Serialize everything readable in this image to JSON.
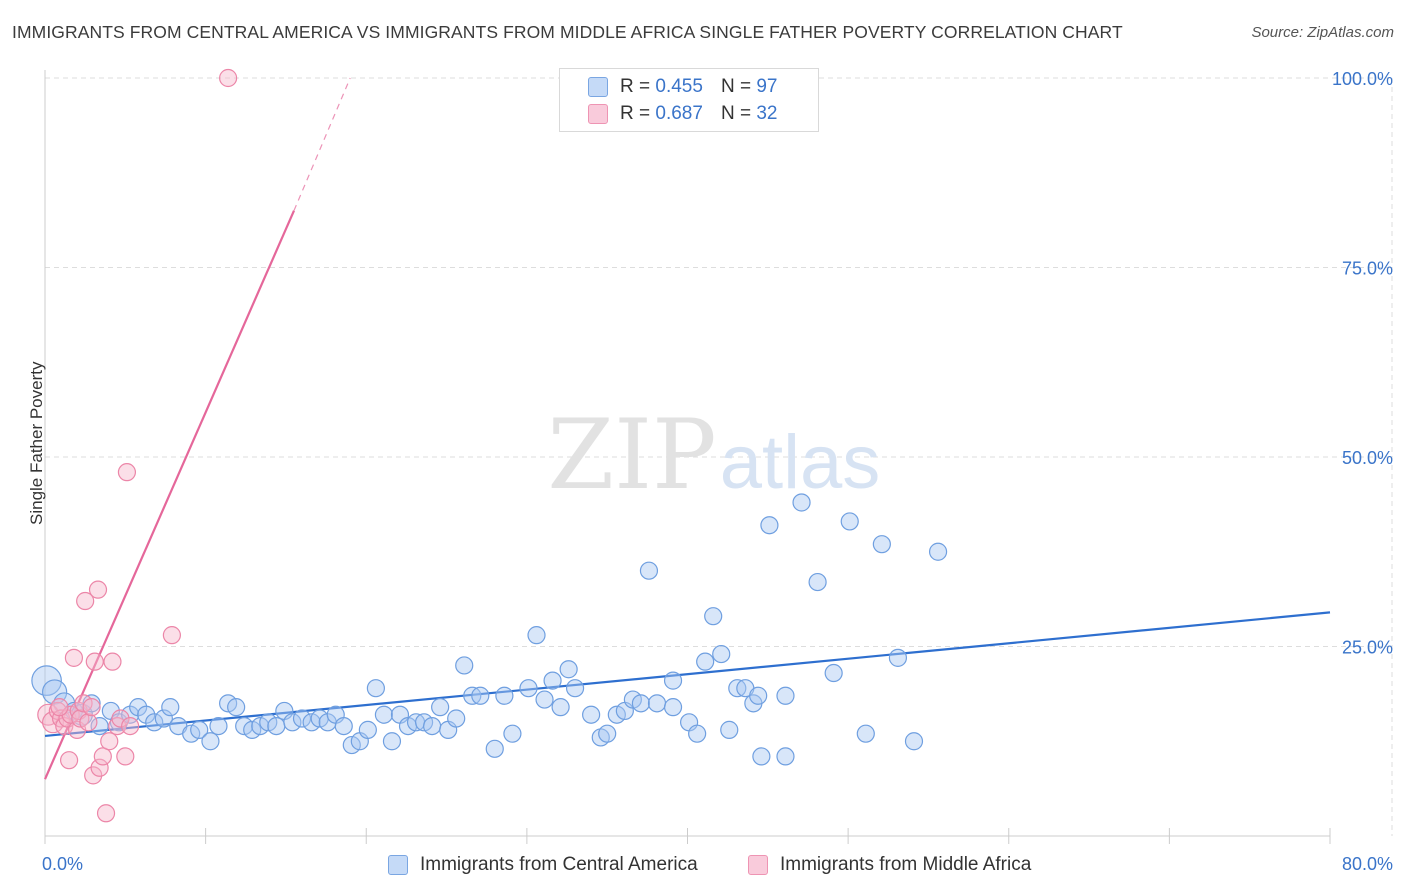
{
  "title": "IMMIGRANTS FROM CENTRAL AMERICA VS IMMIGRANTS FROM MIDDLE AFRICA SINGLE FATHER POVERTY CORRELATION CHART",
  "source": "Source: ZipAtlas.com",
  "watermark": {
    "zip": "ZIP",
    "atlas": "atlas"
  },
  "colors": {
    "blue_fill": "#a9c8f2",
    "blue_stroke": "#6f9fe0",
    "blue_line": "#2e6fcf",
    "pink_fill": "#f7b8cc",
    "pink_stroke": "#ec86a8",
    "pink_line": "#e5679a",
    "axis_text": "#3a74c9",
    "grid": "#dddddd"
  },
  "legend": {
    "r_label": "R =",
    "n_label": "N =",
    "central_america": {
      "r": "0.455",
      "n": "97"
    },
    "middle_africa": {
      "r": "0.687",
      "n": "32"
    }
  },
  "bottom_legend": {
    "central_america": "Immigrants from Central America",
    "middle_africa": "Immigrants from Middle Africa"
  },
  "chart_data": {
    "type": "scatter",
    "title": "IMMIGRANTS FROM CENTRAL AMERICA VS IMMIGRANTS FROM MIDDLE AFRICA SINGLE FATHER POVERTY CORRELATION CHART",
    "xlabel": "",
    "ylabel": "Single Father Poverty",
    "xlim": [
      0,
      80
    ],
    "ylim": [
      0,
      105
    ],
    "x_tick_labels": [
      "0.0%",
      "80.0%"
    ],
    "y_ticks": [
      25,
      50,
      75,
      100
    ],
    "y_tick_labels": [
      "25.0%",
      "50.0%",
      "75.0%",
      "100.0%"
    ],
    "grid": true,
    "series": [
      {
        "name": "Immigrants from Central America",
        "color": "#a9c8f2",
        "trendline": {
          "x": [
            0,
            80
          ],
          "y": [
            13.2,
            29.5
          ]
        },
        "points": [
          {
            "x": 0.1,
            "y": 20.5,
            "s": 3
          },
          {
            "x": 0.6,
            "y": 19,
            "s": 2
          },
          {
            "x": 1.2,
            "y": 17.5,
            "s": 1.5
          },
          {
            "x": 1.8,
            "y": 16.5,
            "s": 1
          },
          {
            "x": 2.3,
            "y": 16,
            "s": 1.5
          },
          {
            "x": 2.9,
            "y": 17.5,
            "s": 1
          },
          {
            "x": 3.4,
            "y": 14.5,
            "s": 1
          },
          {
            "x": 4.1,
            "y": 16.5,
            "s": 1
          },
          {
            "x": 4.6,
            "y": 15,
            "s": 1
          },
          {
            "x": 5.3,
            "y": 16,
            "s": 1
          },
          {
            "x": 5.8,
            "y": 17,
            "s": 1
          },
          {
            "x": 6.3,
            "y": 16,
            "s": 1
          },
          {
            "x": 6.8,
            "y": 15,
            "s": 1
          },
          {
            "x": 7.4,
            "y": 15.5,
            "s": 1
          },
          {
            "x": 7.8,
            "y": 17,
            "s": 1
          },
          {
            "x": 8.3,
            "y": 14.5,
            "s": 1
          },
          {
            "x": 9.1,
            "y": 13.5,
            "s": 1
          },
          {
            "x": 9.6,
            "y": 14,
            "s": 1
          },
          {
            "x": 10.3,
            "y": 12.5,
            "s": 1
          },
          {
            "x": 10.8,
            "y": 14.5,
            "s": 1
          },
          {
            "x": 11.4,
            "y": 17.5,
            "s": 1
          },
          {
            "x": 11.9,
            "y": 17,
            "s": 1
          },
          {
            "x": 12.4,
            "y": 14.5,
            "s": 1
          },
          {
            "x": 12.9,
            "y": 14,
            "s": 1
          },
          {
            "x": 13.4,
            "y": 14.5,
            "s": 1
          },
          {
            "x": 13.9,
            "y": 15,
            "s": 1
          },
          {
            "x": 14.4,
            "y": 14.5,
            "s": 1
          },
          {
            "x": 14.9,
            "y": 16.5,
            "s": 1
          },
          {
            "x": 15.4,
            "y": 15,
            "s": 1
          },
          {
            "x": 16.0,
            "y": 15.5,
            "s": 1
          },
          {
            "x": 16.6,
            "y": 15,
            "s": 1
          },
          {
            "x": 17.1,
            "y": 15.5,
            "s": 1
          },
          {
            "x": 17.6,
            "y": 15,
            "s": 1
          },
          {
            "x": 18.1,
            "y": 16,
            "s": 1
          },
          {
            "x": 18.6,
            "y": 14.5,
            "s": 1
          },
          {
            "x": 19.1,
            "y": 12,
            "s": 1
          },
          {
            "x": 19.6,
            "y": 12.5,
            "s": 1
          },
          {
            "x": 20.1,
            "y": 14,
            "s": 1
          },
          {
            "x": 20.6,
            "y": 19.5,
            "s": 1
          },
          {
            "x": 21.1,
            "y": 16,
            "s": 1
          },
          {
            "x": 21.6,
            "y": 12.5,
            "s": 1
          },
          {
            "x": 22.1,
            "y": 16,
            "s": 1
          },
          {
            "x": 22.6,
            "y": 14.5,
            "s": 1
          },
          {
            "x": 23.1,
            "y": 15,
            "s": 1
          },
          {
            "x": 23.6,
            "y": 15,
            "s": 1
          },
          {
            "x": 24.1,
            "y": 14.5,
            "s": 1
          },
          {
            "x": 24.6,
            "y": 17,
            "s": 1
          },
          {
            "x": 25.1,
            "y": 14,
            "s": 1
          },
          {
            "x": 25.6,
            "y": 15.5,
            "s": 1
          },
          {
            "x": 26.1,
            "y": 22.5,
            "s": 1
          },
          {
            "x": 26.6,
            "y": 18.5,
            "s": 1
          },
          {
            "x": 27.1,
            "y": 18.5,
            "s": 1
          },
          {
            "x": 28.0,
            "y": 11.5,
            "s": 1
          },
          {
            "x": 28.6,
            "y": 18.5,
            "s": 1
          },
          {
            "x": 29.1,
            "y": 13.5,
            "s": 1
          },
          {
            "x": 30.1,
            "y": 19.5,
            "s": 1
          },
          {
            "x": 30.6,
            "y": 26.5,
            "s": 1
          },
          {
            "x": 31.1,
            "y": 18,
            "s": 1
          },
          {
            "x": 31.6,
            "y": 20.5,
            "s": 1
          },
          {
            "x": 32.1,
            "y": 17,
            "s": 1
          },
          {
            "x": 32.6,
            "y": 22,
            "s": 1
          },
          {
            "x": 33.0,
            "y": 19.5,
            "s": 1
          },
          {
            "x": 34.0,
            "y": 16,
            "s": 1
          },
          {
            "x": 34.6,
            "y": 13,
            "s": 1
          },
          {
            "x": 35.0,
            "y": 13.5,
            "s": 1
          },
          {
            "x": 35.6,
            "y": 16,
            "s": 1
          },
          {
            "x": 36.1,
            "y": 16.5,
            "s": 1
          },
          {
            "x": 36.6,
            "y": 18,
            "s": 1
          },
          {
            "x": 37.1,
            "y": 17.5,
            "s": 1
          },
          {
            "x": 37.6,
            "y": 35,
            "s": 1
          },
          {
            "x": 38.1,
            "y": 17.5,
            "s": 1
          },
          {
            "x": 39.1,
            "y": 20.5,
            "s": 1
          },
          {
            "x": 39.1,
            "y": 17,
            "s": 1
          },
          {
            "x": 40.1,
            "y": 15,
            "s": 1
          },
          {
            "x": 40.6,
            "y": 13.5,
            "s": 1
          },
          {
            "x": 41.1,
            "y": 23,
            "s": 1
          },
          {
            "x": 41.6,
            "y": 29,
            "s": 1
          },
          {
            "x": 42.1,
            "y": 24,
            "s": 1
          },
          {
            "x": 42.6,
            "y": 14,
            "s": 1
          },
          {
            "x": 43.1,
            "y": 19.5,
            "s": 1
          },
          {
            "x": 43.6,
            "y": 19.5,
            "s": 1
          },
          {
            "x": 44.1,
            "y": 17.5,
            "s": 1
          },
          {
            "x": 44.4,
            "y": 18.5,
            "s": 1
          },
          {
            "x": 44.6,
            "y": 10.5,
            "s": 1
          },
          {
            "x": 45.1,
            "y": 41,
            "s": 1
          },
          {
            "x": 46.1,
            "y": 10.5,
            "s": 1
          },
          {
            "x": 46.1,
            "y": 18.5,
            "s": 1
          },
          {
            "x": 47.1,
            "y": 44,
            "s": 1
          },
          {
            "x": 48.1,
            "y": 33.5,
            "s": 1
          },
          {
            "x": 49.1,
            "y": 21.5,
            "s": 1
          },
          {
            "x": 50.1,
            "y": 41.5,
            "s": 1
          },
          {
            "x": 51.1,
            "y": 13.5,
            "s": 1
          },
          {
            "x": 52.1,
            "y": 38.5,
            "s": 1
          },
          {
            "x": 53.1,
            "y": 23.5,
            "s": 1
          },
          {
            "x": 54.1,
            "y": 12.5,
            "s": 1
          },
          {
            "x": 55.6,
            "y": 37.5,
            "s": 1
          }
        ]
      },
      {
        "name": "Immigrants from Middle Africa",
        "color": "#f7b8cc",
        "trendline": {
          "x": [
            0,
            15.5
          ],
          "y": [
            7.5,
            82.5
          ]
        },
        "trendline_dashed": {
          "x": [
            15.5,
            19
          ],
          "y": [
            82.5,
            100
          ]
        },
        "points": [
          {
            "x": 0.2,
            "y": 16,
            "s": 1.5
          },
          {
            "x": 0.5,
            "y": 15,
            "s": 1.5
          },
          {
            "x": 0.8,
            "y": 16.5,
            "s": 1
          },
          {
            "x": 1.0,
            "y": 15.5,
            "s": 1
          },
          {
            "x": 1.2,
            "y": 14.5,
            "s": 1
          },
          {
            "x": 1.4,
            "y": 15.5,
            "s": 1
          },
          {
            "x": 1.5,
            "y": 10,
            "s": 1
          },
          {
            "x": 1.6,
            "y": 16,
            "s": 1
          },
          {
            "x": 1.8,
            "y": 23.5,
            "s": 1
          },
          {
            "x": 2.0,
            "y": 14,
            "s": 1
          },
          {
            "x": 2.1,
            "y": 16.5,
            "s": 1
          },
          {
            "x": 2.2,
            "y": 15.5,
            "s": 1
          },
          {
            "x": 2.4,
            "y": 17.5,
            "s": 1
          },
          {
            "x": 2.5,
            "y": 31,
            "s": 1
          },
          {
            "x": 2.7,
            "y": 15,
            "s": 1
          },
          {
            "x": 2.9,
            "y": 17,
            "s": 1
          },
          {
            "x": 3.0,
            "y": 8,
            "s": 1
          },
          {
            "x": 3.1,
            "y": 23,
            "s": 1
          },
          {
            "x": 3.3,
            "y": 32.5,
            "s": 1
          },
          {
            "x": 3.4,
            "y": 9,
            "s": 1
          },
          {
            "x": 3.6,
            "y": 10.5,
            "s": 1
          },
          {
            "x": 3.8,
            "y": 3,
            "s": 1
          },
          {
            "x": 4.0,
            "y": 12.5,
            "s": 1
          },
          {
            "x": 4.2,
            "y": 23,
            "s": 1
          },
          {
            "x": 4.5,
            "y": 14.5,
            "s": 1
          },
          {
            "x": 4.7,
            "y": 15.5,
            "s": 1
          },
          {
            "x": 5.0,
            "y": 10.5,
            "s": 1
          },
          {
            "x": 5.1,
            "y": 48,
            "s": 1
          },
          {
            "x": 5.3,
            "y": 14.5,
            "s": 1
          },
          {
            "x": 7.9,
            "y": 26.5,
            "s": 1
          },
          {
            "x": 11.4,
            "y": 100,
            "s": 1
          },
          {
            "x": 0.9,
            "y": 17,
            "s": 1
          }
        ]
      }
    ]
  }
}
